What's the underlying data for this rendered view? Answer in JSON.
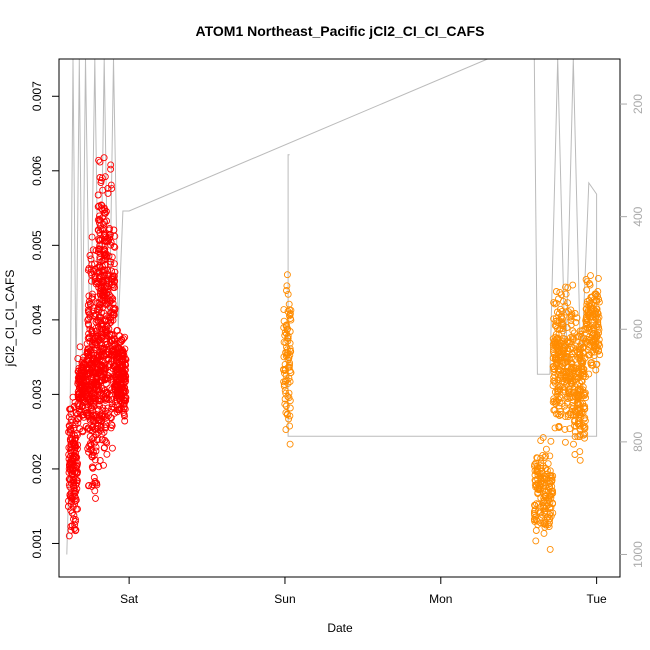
{
  "chart_data": {
    "type": "scatter",
    "title": "ATOM1 Northeast_Pacific jCl2_CI_CI_CAFS",
    "xlabel": "Date",
    "ylabel": "jCl2_CI_CI_CAFS",
    "x_ticks": [
      "Sat",
      "Sun",
      "Mon",
      "Tue"
    ],
    "y_ticks": [
      0.001,
      0.002,
      0.003,
      0.004,
      0.005,
      0.006,
      0.007
    ],
    "y_tick_labels": [
      "0.001",
      "0.002",
      "0.003",
      "0.004",
      "0.005",
      "0.006",
      "0.007"
    ],
    "ylim": [
      0.00055,
      0.0075
    ],
    "xlim_days": [
      -0.45,
      3.15
    ],
    "right_axis": {
      "ticks": [
        200,
        400,
        600,
        800,
        1000
      ],
      "tick_labels": [
        "200",
        "400",
        "600",
        "800",
        "1000"
      ],
      "range": [
        120,
        1040
      ],
      "reversed": true,
      "color": "#aaaaaa"
    },
    "series_colors": {
      "flight_1": "#ff0000",
      "flight_2": "#ff8c00",
      "altitude": "#bbbbbb"
    },
    "series": [
      {
        "color": "#ff0000",
        "x_day_range": [
          -0.4,
          0.0
        ],
        "clusters": [
          {
            "x": [
              -0.39,
              -0.33
            ],
            "y": [
              0.0008,
              0.0032
            ],
            "n": 160
          },
          {
            "x": [
              -0.33,
              -0.27
            ],
            "y": [
              0.0024,
              0.0038
            ],
            "n": 130
          },
          {
            "x": [
              -0.27,
              -0.2
            ],
            "y": [
              0.0012,
              0.0054
            ],
            "n": 260
          },
          {
            "x": [
              -0.2,
              -0.15
            ],
            "y": [
              0.0009,
              0.0069
            ],
            "n": 260
          },
          {
            "x": [
              -0.15,
              -0.09
            ],
            "y": [
              0.0015,
              0.0064
            ],
            "n": 180
          },
          {
            "x": [
              -0.09,
              -0.02
            ],
            "y": [
              0.0024,
              0.0041
            ],
            "n": 200
          }
        ]
      },
      {
        "color": "#ff8c00",
        "x_day_range": [
          1.0,
          3.0
        ],
        "clusters": [
          {
            "x": [
              0.99,
              1.04
            ],
            "y": [
              0.002,
              0.005
            ],
            "n": 90
          },
          {
            "x": [
              2.6,
              2.72
            ],
            "y": [
              0.0008,
              0.0026
            ],
            "n": 160
          },
          {
            "x": [
              2.72,
              2.85
            ],
            "y": [
              0.0022,
              0.0047
            ],
            "n": 260
          },
          {
            "x": [
              2.85,
              2.93
            ],
            "y": [
              0.0018,
              0.0045
            ],
            "n": 160
          },
          {
            "x": [
              2.93,
              3.02
            ],
            "y": [
              0.0031,
              0.0047
            ],
            "n": 140
          }
        ]
      }
    ],
    "altitude_trace": {
      "color": "#bbbbbb",
      "points": [
        [
          -0.4,
          1000
        ],
        [
          -0.38,
          800
        ],
        [
          -0.36,
          120
        ],
        [
          -0.34,
          700
        ],
        [
          -0.32,
          120
        ],
        [
          -0.3,
          650
        ],
        [
          -0.28,
          120
        ],
        [
          -0.25,
          680
        ],
        [
          -0.22,
          120
        ],
        [
          -0.19,
          700
        ],
        [
          -0.16,
          120
        ],
        [
          -0.13,
          650
        ],
        [
          -0.1,
          120
        ],
        [
          -0.07,
          600
        ],
        [
          -0.04,
          390
        ],
        [
          0.0,
          390
        ],
        [
          2.3,
          120
        ],
        [
          2.6,
          120
        ],
        [
          2.62,
          680
        ],
        [
          2.7,
          680
        ],
        [
          2.75,
          120
        ],
        [
          2.8,
          680
        ],
        [
          2.85,
          120
        ],
        [
          2.9,
          690
        ],
        [
          2.95,
          340
        ],
        [
          3.0,
          360
        ],
        [
          3.0,
          790
        ],
        [
          1.02,
          790
        ],
        [
          1.02,
          290
        ],
        [
          1.03,
          290
        ]
      ]
    }
  }
}
